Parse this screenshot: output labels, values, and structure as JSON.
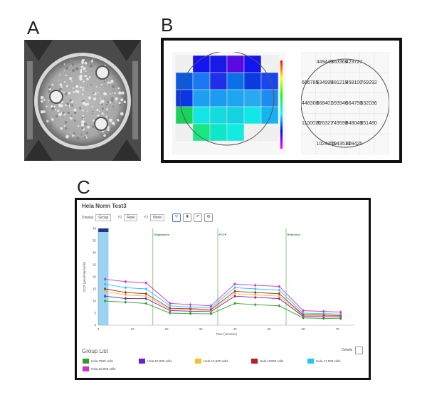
{
  "panels": {
    "a": "A",
    "b": "B",
    "c": "C"
  },
  "heatmap": {
    "rows": [
      [
        "",
        "#1414f0",
        "#1a1ae6",
        "#5a0ae0",
        "#1414f0",
        ""
      ],
      [
        "#0a5ae0",
        "#1a78f0",
        "#2030e8",
        "#0a70e8",
        "#0a3ce0",
        "#1a46f0"
      ],
      [
        "#0a36e6",
        "#1ea0f0",
        "#1a9cf0",
        "#1ea4f0",
        "#2aa8f0",
        "#1e8cf0"
      ],
      [
        "#19d25a",
        "#14e6e6",
        "#14dcdc",
        "#14d2e0",
        "#10e8e8",
        "#14b4f0"
      ],
      [
        "",
        "#19e882",
        "#12e6c8",
        "#10ece0",
        "",
        ""
      ]
    ],
    "colorbar": [
      "#ff0000",
      "#ffff00",
      "#00ff00",
      "#00ffff",
      "#0000ff",
      "#ff00ff"
    ]
  },
  "table": {
    "rows": [
      [
        "",
        "449445",
        "363366",
        "423727",
        "",
        ""
      ],
      [
        "666785",
        "634995",
        "481219",
        "468100",
        "769292",
        ""
      ],
      [
        "448300",
        "668401",
        "593946",
        "564750",
        "632036",
        ""
      ],
      [
        "1100076",
        "826327",
        "749598",
        "848049",
        "851480",
        ""
      ],
      [
        "",
        "1024355",
        "1043513",
        "809425",
        "",
        ""
      ]
    ]
  },
  "app": {
    "title": "Hela Norm Test3",
    "toolbar": {
      "display_label": "Display",
      "display_value": "Group",
      "y1_label": "Y1",
      "y1_value": "Rate",
      "y2_label": "Y2",
      "y2_value": "None"
    },
    "group_list_title": "Group List",
    "details_label": "Details",
    "legend": [
      {
        "name": "Hela 7500 cells",
        "color": "#2ca02c"
      },
      {
        "name": "Hela 10,000 cells",
        "color": "#6a1fc9"
      },
      {
        "name": "Hela 12,500 cells",
        "color": "#f2c230"
      },
      {
        "name": "Hela 15000 cells",
        "color": "#b22222"
      },
      {
        "name": "Hela 17,500 cells",
        "color": "#22c8f0"
      },
      {
        "name": "Hela 20,000 cells",
        "color": "#cc33cc"
      }
    ]
  },
  "chart_data": {
    "type": "line",
    "xlabel": "Time (minutes)",
    "ylabel": "OCR (pmol/min/cells)",
    "xlim": [
      0,
      75
    ],
    "ylim": [
      0,
      40
    ],
    "xticks": [
      "0",
      "10",
      "20",
      "30",
      "40",
      "50",
      "60",
      "70"
    ],
    "yticks": [
      "0",
      "5",
      "10",
      "15",
      "20",
      "25",
      "30",
      "35",
      "40"
    ],
    "injections": [
      {
        "label": "Oligomycin",
        "x": 16
      },
      {
        "label": "FCCP",
        "x": 35
      },
      {
        "label": "Rotenone",
        "x": 55
      }
    ],
    "highlight_range": [
      0,
      3
    ],
    "x": [
      2,
      8,
      14,
      21,
      27,
      33,
      40,
      46,
      53,
      60,
      66,
      71
    ],
    "series": [
      {
        "name": "Hela 7500 cells",
        "color": "#2ca02c",
        "values": [
          10,
          9.5,
          9,
          5,
          4.8,
          4.7,
          9,
          8.5,
          8,
          3,
          2.8,
          2.7
        ]
      },
      {
        "name": "Hela 10,000 cells",
        "color": "#6a1fc9",
        "values": [
          12,
          11,
          11,
          6,
          5.8,
          5.6,
          12,
          11.5,
          11,
          3.6,
          3.5,
          3.3
        ]
      },
      {
        "name": "Hela 12,500 cells",
        "color": "#f2c230",
        "values": [
          14,
          12.5,
          12,
          6.5,
          6.3,
          6,
          13,
          12.5,
          12,
          4,
          3.9,
          3.7
        ]
      },
      {
        "name": "Hela 15000 cells",
        "color": "#b22222",
        "values": [
          15,
          13.5,
          13,
          7,
          6.8,
          6.5,
          14,
          13.5,
          13,
          4.3,
          4.2,
          4
        ]
      },
      {
        "name": "Hela 17,500 cells",
        "color": "#22c8f0",
        "values": [
          17,
          15.5,
          15,
          8,
          7.5,
          7.2,
          15.5,
          15,
          14.5,
          5,
          4.8,
          4.6
        ]
      },
      {
        "name": "Hela 20,000 cells",
        "color": "#cc33cc",
        "values": [
          19,
          18,
          17.5,
          9,
          8.5,
          8,
          17,
          16.5,
          16,
          6,
          5.7,
          5.4
        ]
      }
    ]
  }
}
